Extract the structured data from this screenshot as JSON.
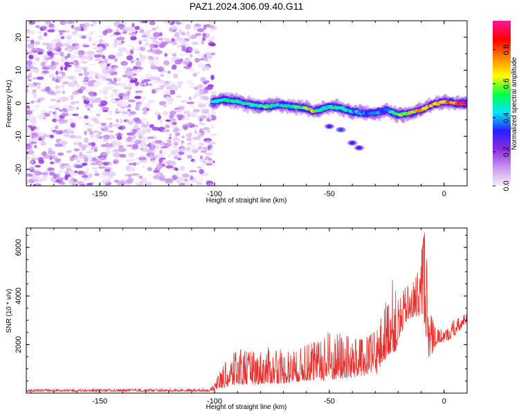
{
  "title": "PAZ1.2024.306.09.40.G11",
  "chart_data": [
    {
      "type": "heatmap",
      "xlabel": "Height of straight line (km)",
      "ylabel": "Frequency (Hz)",
      "xlim": [
        -182,
        10
      ],
      "ylim": [
        -25,
        25
      ],
      "xticks": [
        -150,
        -100,
        -50,
        0
      ],
      "yticks": [
        -20,
        -10,
        0,
        10,
        20
      ],
      "signal_onset_km": -100,
      "noise_region_km": [
        -182,
        -100
      ],
      "trace": {
        "x": [
          -101,
          -96,
          -90,
          -84,
          -78,
          -72,
          -66,
          -60,
          -57,
          -54,
          -50,
          -45,
          -40,
          -35,
          -30,
          -25,
          -20,
          -15,
          -10,
          -5,
          0,
          5,
          10
        ],
        "y": [
          0.5,
          1.0,
          0.5,
          -0.5,
          -1.0,
          -0.5,
          -1.0,
          -1.5,
          -2.5,
          -2.0,
          -1.0,
          -1.5,
          -2.5,
          -3.0,
          -3.0,
          -2.0,
          -3.5,
          -3.0,
          -2.0,
          -0.5,
          0.5,
          0.0,
          0.0
        ],
        "amplitude": [
          0.45,
          0.55,
          0.5,
          0.55,
          0.6,
          0.5,
          0.55,
          0.6,
          0.75,
          0.5,
          0.5,
          0.55,
          0.45,
          0.4,
          0.4,
          0.35,
          0.6,
          0.7,
          0.75,
          0.8,
          0.85,
          0.9,
          0.95
        ]
      },
      "branch": {
        "x": [
          -50,
          -45,
          -40,
          -37
        ],
        "y": [
          -7,
          -8,
          -12,
          -13.5
        ],
        "amplitude": [
          0.3,
          0.35,
          0.3,
          0.3
        ]
      },
      "colorbar": {
        "label": "Normalized spectral amplitude",
        "range": [
          0,
          0.97
        ],
        "ticks": [
          "0.0",
          "0.2",
          "0.4",
          "0.6",
          "0.8"
        ],
        "tick_values": [
          0.0,
          0.2,
          0.4,
          0.6,
          0.8
        ],
        "colors": [
          "#f4ecf8",
          "#c995ee",
          "#8a2be2",
          "#2a1fff",
          "#00e5ff",
          "#00ff44",
          "#ffff00",
          "#ff8800",
          "#ff0000",
          "#ff1493"
        ]
      }
    },
    {
      "type": "line",
      "xlabel": "Height of straight line (km)",
      "ylabel": "SNR (10 * v/v)",
      "xlim": [
        -182,
        10
      ],
      "ylim": [
        0,
        6800
      ],
      "xticks": [
        -150,
        -100,
        -50,
        0
      ],
      "yticks": [
        2000,
        4000,
        6000
      ],
      "color": "#e8302c",
      "envelope": {
        "x": [
          -182,
          -102,
          -100,
          -98,
          -95,
          -92,
          -89,
          -86,
          -83,
          -80,
          -77,
          -74,
          -71,
          -68,
          -65,
          -62,
          -59,
          -56,
          -53,
          -50,
          -47,
          -44,
          -41,
          -38,
          -35,
          -32,
          -29,
          -27,
          -25,
          -23,
          -21,
          -19,
          -17,
          -15,
          -13,
          -11,
          -9,
          -8,
          -7,
          -6,
          -4,
          -2,
          0,
          2,
          4,
          6,
          8,
          10
        ],
        "low": [
          60,
          70,
          120,
          200,
          250,
          300,
          350,
          350,
          350,
          380,
          380,
          400,
          400,
          420,
          450,
          500,
          520,
          520,
          520,
          550,
          550,
          600,
          600,
          650,
          700,
          750,
          800,
          1200,
          1500,
          1700,
          1700,
          2300,
          2900,
          3000,
          3100,
          3200,
          3000,
          2500,
          1400,
          1500,
          1900,
          2100,
          2100,
          2200,
          2300,
          2500,
          2700,
          2900
        ],
        "high": [
          160,
          180,
          350,
          800,
          1300,
          1600,
          1800,
          1700,
          1700,
          1800,
          1900,
          1700,
          1800,
          1700,
          1700,
          1900,
          2000,
          2100,
          2100,
          2600,
          2500,
          2400,
          2300,
          2200,
          2200,
          2400,
          2600,
          3400,
          3800,
          4800,
          4200,
          3900,
          4400,
          4400,
          4600,
          5100,
          6400,
          6800,
          4300,
          3300,
          2700,
          2600,
          2700,
          2700,
          3000,
          3100,
          3200,
          3300
        ]
      }
    }
  ]
}
